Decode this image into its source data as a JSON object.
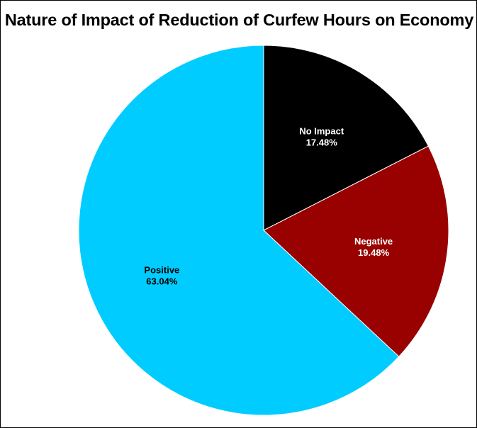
{
  "chart_data": {
    "type": "pie",
    "title": "Nature of Impact of Reduction of Curfew Hours on Economy",
    "slices": [
      {
        "label": "No Impact",
        "value": 17.48,
        "value_label": "17.48%",
        "color": "#000000",
        "text_color": "#ffffff"
      },
      {
        "label": "Negative",
        "value": 19.48,
        "value_label": "19.48%",
        "color": "#990000",
        "text_color": "#ffffff"
      },
      {
        "label": "Positive",
        "value": 63.04,
        "value_label": "63.04%",
        "color": "#00ccff",
        "text_color": "#000000"
      }
    ],
    "start_angle": "top (12 o'clock), clockwise",
    "slice_border_color": "#ffffff",
    "legend": "none"
  }
}
